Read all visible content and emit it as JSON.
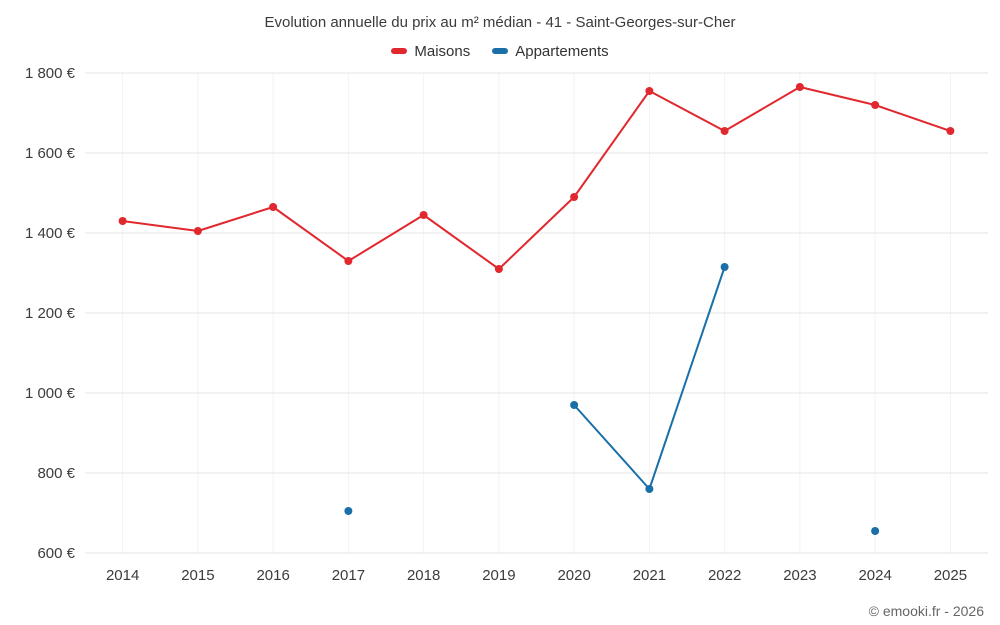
{
  "chart_data": {
    "type": "line",
    "title": "Evolution annuelle du prix au m² médian - 41 - Saint-Georges-sur-Cher",
    "categories": [
      "2014",
      "2015",
      "2016",
      "2017",
      "2018",
      "2019",
      "2020",
      "2021",
      "2022",
      "2023",
      "2024",
      "2025"
    ],
    "series": [
      {
        "name": "Maisons",
        "color": "#e0282e",
        "values": [
          1430,
          1405,
          1465,
          1330,
          1445,
          1310,
          1490,
          1755,
          1655,
          1765,
          1720,
          1655
        ]
      },
      {
        "name": "Appartements",
        "color": "#1a6fa8",
        "values": [
          null,
          null,
          null,
          705,
          null,
          null,
          970,
          760,
          1315,
          null,
          655,
          null
        ]
      }
    ],
    "ylim": [
      600,
      1800
    ],
    "ytick_step": 200,
    "ytick_labels": [
      "600 €",
      "800 €",
      "1 000 €",
      "1 200 €",
      "1 400 €",
      "1 600 €",
      "1 800 €"
    ],
    "xlabel": "",
    "ylabel": "",
    "grid": true,
    "legend_position": "top"
  },
  "footer": {
    "credit": "© emooki.fr - 2026"
  }
}
